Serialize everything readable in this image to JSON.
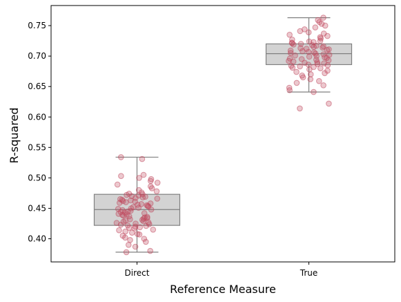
{
  "chart_data": {
    "type": "box",
    "title": "",
    "xlabel": "Reference Measure",
    "ylabel": "R-squared",
    "categories": [
      "Direct",
      "True"
    ],
    "ylim": [
      0.362,
      0.783
    ],
    "yticks": [
      "0.40",
      "0.45",
      "0.50",
      "0.55",
      "0.60",
      "0.65",
      "0.70",
      "0.75"
    ],
    "grid": false,
    "box_color": "#d3d3d3",
    "box_edge_color": "#808080",
    "point_color": "#c0485e",
    "boxes": [
      {
        "category": "Direct",
        "whisker_low": 0.378,
        "q1": 0.422,
        "median": 0.448,
        "q3": 0.473,
        "whisker_high": 0.534
      },
      {
        "category": "True",
        "whisker_low": 0.641,
        "q1": 0.686,
        "median": 0.704,
        "q3": 0.72,
        "whisker_high": 0.763
      }
    ],
    "series": [
      {
        "category": "Direct",
        "values": [
          0.378,
          0.38,
          0.387,
          0.39,
          0.395,
          0.398,
          0.4,
          0.402,
          0.405,
          0.407,
          0.408,
          0.41,
          0.412,
          0.414,
          0.415,
          0.417,
          0.418,
          0.419,
          0.42,
          0.421,
          0.422,
          0.423,
          0.424,
          0.425,
          0.426,
          0.427,
          0.428,
          0.429,
          0.43,
          0.431,
          0.432,
          0.433,
          0.434,
          0.435,
          0.436,
          0.437,
          0.438,
          0.439,
          0.44,
          0.441,
          0.442,
          0.443,
          0.444,
          0.445,
          0.446,
          0.447,
          0.448,
          0.449,
          0.45,
          0.451,
          0.452,
          0.453,
          0.454,
          0.455,
          0.456,
          0.457,
          0.458,
          0.459,
          0.46,
          0.461,
          0.462,
          0.463,
          0.464,
          0.465,
          0.466,
          0.467,
          0.468,
          0.469,
          0.47,
          0.471,
          0.472,
          0.473,
          0.474,
          0.476,
          0.478,
          0.48,
          0.483,
          0.486,
          0.489,
          0.492,
          0.495,
          0.498,
          0.5,
          0.503,
          0.505,
          0.531,
          0.534
        ]
      },
      {
        "category": "True",
        "values": [
          0.614,
          0.622,
          0.641,
          0.644,
          0.648,
          0.652,
          0.656,
          0.659,
          0.662,
          0.665,
          0.668,
          0.67,
          0.672,
          0.674,
          0.676,
          0.678,
          0.68,
          0.681,
          0.682,
          0.683,
          0.684,
          0.685,
          0.686,
          0.687,
          0.688,
          0.689,
          0.69,
          0.691,
          0.692,
          0.693,
          0.694,
          0.695,
          0.696,
          0.697,
          0.698,
          0.699,
          0.7,
          0.701,
          0.702,
          0.703,
          0.704,
          0.705,
          0.706,
          0.707,
          0.708,
          0.709,
          0.71,
          0.711,
          0.712,
          0.713,
          0.714,
          0.715,
          0.716,
          0.717,
          0.718,
          0.719,
          0.72,
          0.721,
          0.722,
          0.723,
          0.724,
          0.725,
          0.727,
          0.729,
          0.731,
          0.733,
          0.735,
          0.737,
          0.739,
          0.741,
          0.744,
          0.747,
          0.75,
          0.753,
          0.756,
          0.759,
          0.763
        ]
      }
    ]
  }
}
